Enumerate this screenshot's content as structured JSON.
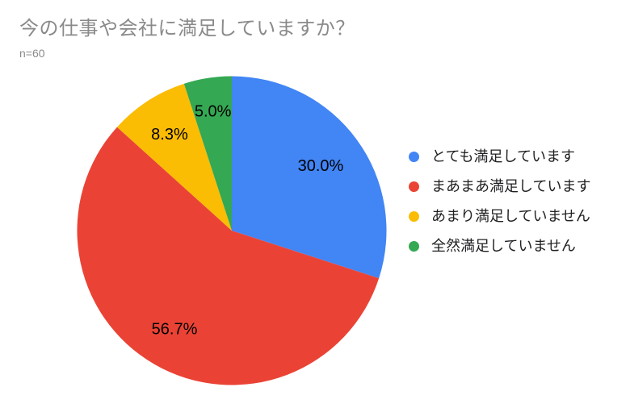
{
  "page": {
    "background_color": "#ffffff"
  },
  "chart_data": {
    "type": "pie",
    "title": "今の仕事や会社に満足していますか？",
    "subtitle": "n=60",
    "categories": [
      "とても満足しています",
      "まあまあ満足しています",
      "あまり満足していません",
      "全然満足していません"
    ],
    "values": [
      30.0,
      56.7,
      8.3,
      5.0
    ],
    "value_labels": [
      "30.0%",
      "56.7%",
      "8.3%",
      "5.0%"
    ],
    "unit": "%",
    "colors": [
      "#4285F4",
      "#EA4335",
      "#FBBC04",
      "#34A853"
    ],
    "start_angle_deg": 0,
    "direction": "clockwise",
    "legend_position": "right",
    "title_color": "#8a8a8a",
    "subtitle_color": "#8a8a8a",
    "slice_label_color": "#000000",
    "legend_text_color": "#202124"
  }
}
